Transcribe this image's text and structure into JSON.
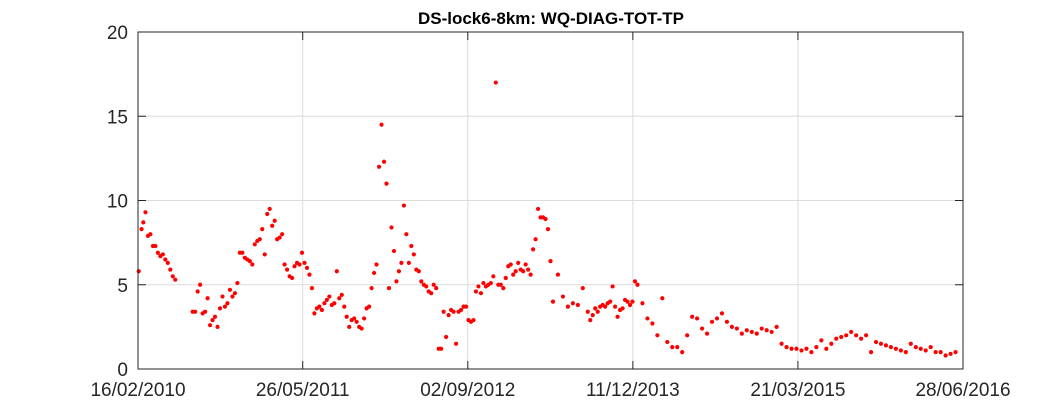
{
  "chart_data": {
    "type": "scatter",
    "title": "DS-lock6-8km: WQ-DIAG-TOT-TP",
    "xlabel": "",
    "ylabel": "",
    "x_type": "date",
    "xlim": [
      "2010-02-16",
      "2016-06-28"
    ],
    "ylim": [
      0,
      20
    ],
    "x_ticks": [
      {
        "date": "2010-02-16",
        "label": "16/02/2010"
      },
      {
        "date": "2011-05-26",
        "label": "26/05/2011"
      },
      {
        "date": "2012-09-02",
        "label": "02/09/2012"
      },
      {
        "date": "2013-12-11",
        "label": "11/12/2013"
      },
      {
        "date": "2015-03-21",
        "label": "21/03/2015"
      },
      {
        "date": "2016-06-28",
        "label": "28/06/2016"
      }
    ],
    "y_ticks": [
      0,
      5,
      10,
      15,
      20
    ],
    "grid": true,
    "marker_color": "#ff0000",
    "series": [
      {
        "name": "",
        "points": [
          [
            "2010-02-18",
            5.8
          ],
          [
            "2010-02-26",
            8.3
          ],
          [
            "2010-03-03",
            8.7
          ],
          [
            "2010-03-09",
            9.3
          ],
          [
            "2010-03-16",
            7.9
          ],
          [
            "2010-03-23",
            8.0
          ],
          [
            "2010-03-30",
            7.3
          ],
          [
            "2010-04-06",
            7.3
          ],
          [
            "2010-04-13",
            6.9
          ],
          [
            "2010-04-20",
            6.7
          ],
          [
            "2010-04-27",
            6.8
          ],
          [
            "2010-05-04",
            6.5
          ],
          [
            "2010-05-11",
            6.3
          ],
          [
            "2010-05-18",
            5.9
          ],
          [
            "2010-05-25",
            5.5
          ],
          [
            "2010-06-01",
            5.3
          ],
          [
            "2010-07-20",
            3.4
          ],
          [
            "2010-07-27",
            3.4
          ],
          [
            "2010-08-03",
            4.6
          ],
          [
            "2010-08-10",
            5.0
          ],
          [
            "2010-08-17",
            3.3
          ],
          [
            "2010-08-24",
            3.4
          ],
          [
            "2010-08-31",
            4.2
          ],
          [
            "2010-09-07",
            2.6
          ],
          [
            "2010-09-14",
            2.9
          ],
          [
            "2010-09-21",
            3.1
          ],
          [
            "2010-09-28",
            2.5
          ],
          [
            "2010-10-05",
            3.6
          ],
          [
            "2010-10-12",
            4.3
          ],
          [
            "2010-10-19",
            3.7
          ],
          [
            "2010-10-26",
            3.9
          ],
          [
            "2010-11-02",
            4.7
          ],
          [
            "2010-11-09",
            4.3
          ],
          [
            "2010-11-16",
            4.5
          ],
          [
            "2010-11-23",
            5.1
          ],
          [
            "2010-11-30",
            6.9
          ],
          [
            "2010-12-07",
            6.9
          ],
          [
            "2010-12-14",
            6.6
          ],
          [
            "2010-12-21",
            6.5
          ],
          [
            "2010-12-28",
            6.4
          ],
          [
            "2011-01-04",
            6.2
          ],
          [
            "2011-01-11",
            7.4
          ],
          [
            "2011-01-18",
            7.6
          ],
          [
            "2011-01-25",
            7.7
          ],
          [
            "2011-02-01",
            8.3
          ],
          [
            "2011-02-08",
            6.8
          ],
          [
            "2011-02-15",
            9.2
          ],
          [
            "2011-02-22",
            9.5
          ],
          [
            "2011-03-01",
            8.5
          ],
          [
            "2011-03-08",
            8.8
          ],
          [
            "2011-03-15",
            7.7
          ],
          [
            "2011-03-22",
            7.8
          ],
          [
            "2011-03-29",
            8.0
          ],
          [
            "2011-04-05",
            6.2
          ],
          [
            "2011-04-12",
            5.9
          ],
          [
            "2011-04-19",
            5.5
          ],
          [
            "2011-04-26",
            5.4
          ],
          [
            "2011-05-03",
            6.1
          ],
          [
            "2011-05-10",
            6.3
          ],
          [
            "2011-05-17",
            6.2
          ],
          [
            "2011-05-24",
            6.9
          ],
          [
            "2011-05-31",
            6.3
          ],
          [
            "2011-06-07",
            6.0
          ],
          [
            "2011-06-14",
            5.6
          ],
          [
            "2011-06-21",
            4.8
          ],
          [
            "2011-06-28",
            3.3
          ],
          [
            "2011-07-05",
            3.6
          ],
          [
            "2011-07-12",
            3.7
          ],
          [
            "2011-07-19",
            3.5
          ],
          [
            "2011-07-26",
            3.9
          ],
          [
            "2011-08-02",
            4.1
          ],
          [
            "2011-08-09",
            4.3
          ],
          [
            "2011-08-16",
            3.8
          ],
          [
            "2011-08-23",
            3.9
          ],
          [
            "2011-08-30",
            5.8
          ],
          [
            "2011-09-06",
            4.2
          ],
          [
            "2011-09-13",
            4.4
          ],
          [
            "2011-09-20",
            3.7
          ],
          [
            "2011-09-27",
            3.1
          ],
          [
            "2011-10-04",
            2.5
          ],
          [
            "2011-10-11",
            2.9
          ],
          [
            "2011-10-18",
            3.0
          ],
          [
            "2011-10-25",
            2.8
          ],
          [
            "2011-11-01",
            2.5
          ],
          [
            "2011-11-08",
            2.4
          ],
          [
            "2011-11-15",
            3.0
          ],
          [
            "2011-11-22",
            3.6
          ],
          [
            "2011-11-29",
            3.7
          ],
          [
            "2011-12-06",
            4.8
          ],
          [
            "2011-12-13",
            5.7
          ],
          [
            "2011-12-20",
            6.2
          ],
          [
            "2011-12-27",
            12.0
          ],
          [
            "2012-01-03",
            14.5
          ],
          [
            "2012-01-10",
            12.3
          ],
          [
            "2012-01-17",
            11.0
          ],
          [
            "2012-01-24",
            4.8
          ],
          [
            "2012-01-31",
            8.4
          ],
          [
            "2012-02-07",
            7.0
          ],
          [
            "2012-02-14",
            5.2
          ],
          [
            "2012-02-21",
            5.8
          ],
          [
            "2012-02-28",
            6.3
          ],
          [
            "2012-03-06",
            9.7
          ],
          [
            "2012-03-13",
            8.0
          ],
          [
            "2012-03-20",
            6.3
          ],
          [
            "2012-03-27",
            7.3
          ],
          [
            "2012-04-03",
            6.8
          ],
          [
            "2012-04-10",
            5.9
          ],
          [
            "2012-04-17",
            5.8
          ],
          [
            "2012-04-24",
            5.2
          ],
          [
            "2012-05-01",
            5.0
          ],
          [
            "2012-05-08",
            4.9
          ],
          [
            "2012-05-15",
            4.6
          ],
          [
            "2012-05-22",
            4.5
          ],
          [
            "2012-05-29",
            5.0
          ],
          [
            "2012-06-05",
            4.8
          ],
          [
            "2012-06-12",
            1.2
          ],
          [
            "2012-06-19",
            1.2
          ],
          [
            "2012-06-26",
            3.4
          ],
          [
            "2012-07-03",
            1.9
          ],
          [
            "2012-07-10",
            3.2
          ],
          [
            "2012-07-17",
            3.5
          ],
          [
            "2012-07-24",
            3.4
          ],
          [
            "2012-07-31",
            1.5
          ],
          [
            "2012-08-07",
            3.4
          ],
          [
            "2012-08-14",
            3.5
          ],
          [
            "2012-08-21",
            3.7
          ],
          [
            "2012-08-28",
            3.7
          ],
          [
            "2012-09-04",
            2.9
          ],
          [
            "2012-09-11",
            2.8
          ],
          [
            "2012-09-18",
            2.9
          ],
          [
            "2012-09-25",
            4.6
          ],
          [
            "2012-10-02",
            4.9
          ],
          [
            "2012-10-09",
            4.5
          ],
          [
            "2012-10-16",
            5.1
          ],
          [
            "2012-10-23",
            4.9
          ],
          [
            "2012-10-30",
            5.0
          ],
          [
            "2012-11-06",
            5.1
          ],
          [
            "2012-11-13",
            5.5
          ],
          [
            "2012-11-20",
            17.0
          ],
          [
            "2012-11-27",
            5.0
          ],
          [
            "2012-12-04",
            5.0
          ],
          [
            "2012-12-11",
            4.8
          ],
          [
            "2012-12-18",
            5.4
          ],
          [
            "2012-12-25",
            6.1
          ],
          [
            "2013-01-01",
            6.2
          ],
          [
            "2013-01-08",
            5.6
          ],
          [
            "2013-01-15",
            5.8
          ],
          [
            "2013-01-22",
            6.3
          ],
          [
            "2013-01-29",
            5.9
          ],
          [
            "2013-02-05",
            5.8
          ],
          [
            "2013-02-12",
            6.2
          ],
          [
            "2013-02-19",
            5.9
          ],
          [
            "2013-02-26",
            5.6
          ],
          [
            "2013-03-05",
            7.1
          ],
          [
            "2013-03-12",
            7.7
          ],
          [
            "2013-03-19",
            9.5
          ],
          [
            "2013-03-26",
            9.0
          ],
          [
            "2013-04-02",
            9.0
          ],
          [
            "2013-04-09",
            8.9
          ],
          [
            "2013-04-16",
            8.3
          ],
          [
            "2013-04-23",
            6.4
          ],
          [
            "2013-04-30",
            4.0
          ],
          [
            "2013-05-14",
            5.6
          ],
          [
            "2013-05-28",
            4.3
          ],
          [
            "2013-06-11",
            3.7
          ],
          [
            "2013-06-25",
            3.9
          ],
          [
            "2013-07-09",
            3.8
          ],
          [
            "2013-07-23",
            4.8
          ],
          [
            "2013-08-06",
            3.4
          ],
          [
            "2013-08-13",
            2.9
          ],
          [
            "2013-08-20",
            3.2
          ],
          [
            "2013-08-27",
            3.6
          ],
          [
            "2013-09-03",
            3.4
          ],
          [
            "2013-09-10",
            3.7
          ],
          [
            "2013-09-17",
            3.8
          ],
          [
            "2013-09-24",
            3.7
          ],
          [
            "2013-10-01",
            3.9
          ],
          [
            "2013-10-08",
            4.0
          ],
          [
            "2013-10-15",
            4.9
          ],
          [
            "2013-10-22",
            3.7
          ],
          [
            "2013-10-29",
            3.1
          ],
          [
            "2013-11-05",
            3.5
          ],
          [
            "2013-11-12",
            3.6
          ],
          [
            "2013-11-19",
            4.1
          ],
          [
            "2013-11-26",
            4.0
          ],
          [
            "2013-12-03",
            3.8
          ],
          [
            "2013-12-10",
            4.0
          ],
          [
            "2013-12-17",
            5.2
          ],
          [
            "2013-12-24",
            5.0
          ],
          [
            "2014-01-07",
            3.9
          ],
          [
            "2014-01-21",
            3.0
          ],
          [
            "2014-02-04",
            2.7
          ],
          [
            "2014-02-18",
            2.0
          ],
          [
            "2014-03-04",
            4.2
          ],
          [
            "2014-03-18",
            1.6
          ],
          [
            "2014-04-01",
            1.3
          ],
          [
            "2014-04-15",
            1.3
          ],
          [
            "2014-04-29",
            1.0
          ],
          [
            "2014-05-13",
            2.0
          ],
          [
            "2014-05-27",
            3.1
          ],
          [
            "2014-06-10",
            3.0
          ],
          [
            "2014-06-24",
            2.4
          ],
          [
            "2014-07-08",
            2.1
          ],
          [
            "2014-07-22",
            2.8
          ],
          [
            "2014-08-05",
            3.0
          ],
          [
            "2014-08-19",
            3.3
          ],
          [
            "2014-09-02",
            2.8
          ],
          [
            "2014-09-16",
            2.5
          ],
          [
            "2014-09-30",
            2.4
          ],
          [
            "2014-10-14",
            2.1
          ],
          [
            "2014-10-28",
            2.3
          ],
          [
            "2014-11-11",
            2.2
          ],
          [
            "2014-11-25",
            2.1
          ],
          [
            "2014-12-09",
            2.4
          ],
          [
            "2014-12-23",
            2.3
          ],
          [
            "2015-01-06",
            2.2
          ],
          [
            "2015-01-20",
            2.5
          ],
          [
            "2015-02-03",
            1.5
          ],
          [
            "2015-02-17",
            1.3
          ],
          [
            "2015-03-03",
            1.2
          ],
          [
            "2015-03-17",
            1.2
          ],
          [
            "2015-03-31",
            1.1
          ],
          [
            "2015-04-14",
            1.2
          ],
          [
            "2015-04-28",
            1.0
          ],
          [
            "2015-05-12",
            1.3
          ],
          [
            "2015-05-26",
            1.7
          ],
          [
            "2015-06-09",
            1.2
          ],
          [
            "2015-06-23",
            1.5
          ],
          [
            "2015-07-07",
            1.8
          ],
          [
            "2015-07-21",
            1.9
          ],
          [
            "2015-08-04",
            2.0
          ],
          [
            "2015-08-18",
            2.2
          ],
          [
            "2015-09-01",
            2.0
          ],
          [
            "2015-09-15",
            1.8
          ],
          [
            "2015-09-29",
            2.0
          ],
          [
            "2015-10-13",
            1.0
          ],
          [
            "2015-10-27",
            1.6
          ],
          [
            "2015-11-10",
            1.5
          ],
          [
            "2015-11-24",
            1.4
          ],
          [
            "2015-12-08",
            1.3
          ],
          [
            "2015-12-22",
            1.2
          ],
          [
            "2016-01-05",
            1.1
          ],
          [
            "2016-01-19",
            1.0
          ],
          [
            "2016-02-02",
            1.5
          ],
          [
            "2016-02-16",
            1.3
          ],
          [
            "2016-03-01",
            1.2
          ],
          [
            "2016-03-15",
            1.1
          ],
          [
            "2016-03-29",
            1.3
          ],
          [
            "2016-04-12",
            1.0
          ],
          [
            "2016-04-26",
            1.0
          ],
          [
            "2016-05-10",
            0.8
          ],
          [
            "2016-05-24",
            0.9
          ],
          [
            "2016-06-07",
            1.0
          ]
        ]
      }
    ]
  }
}
